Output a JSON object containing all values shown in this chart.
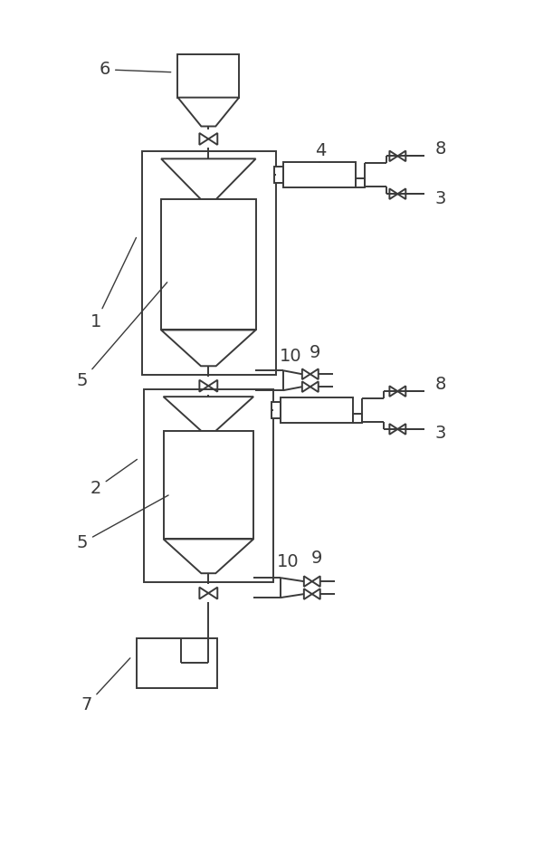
{
  "line_color": "#3a3a3a",
  "bg_color": "#ffffff",
  "label_color": "#222222",
  "lw": 1.4,
  "figsize": [
    6.0,
    9.3
  ],
  "dpi": 100
}
